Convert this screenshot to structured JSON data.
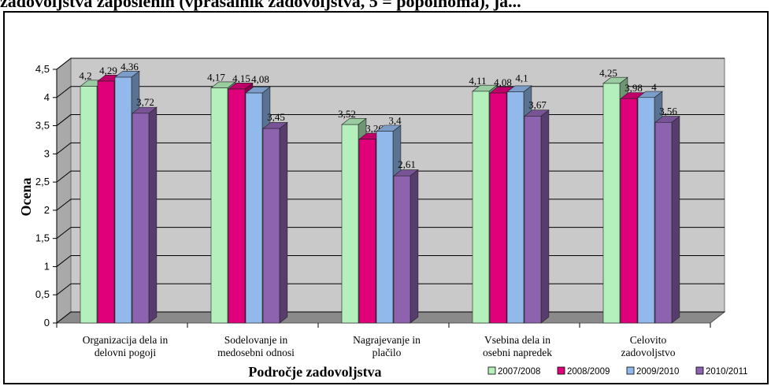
{
  "header": {
    "cut_text": "zadovoljstva zaposlenih (vprašalnik zadovoljstva, 5 = popolnoma), ja..."
  },
  "chart_data": {
    "type": "bar",
    "title": "",
    "xlabel": "Področje zadovoljstva",
    "ylabel": "Ocena",
    "ylim": [
      0,
      4.5
    ],
    "yticks": [
      "0",
      "0,5",
      "1",
      "1,5",
      "2",
      "2,5",
      "3",
      "3,5",
      "4",
      "4,5"
    ],
    "grid": true,
    "legend_position": "bottom-right",
    "categories": [
      [
        "Organizacija dela in",
        "delovni pogoji"
      ],
      [
        "Sodelovanje in",
        "medosebni odnosi"
      ],
      [
        "Nagrajevanje in",
        "plačilo"
      ],
      [
        "Vsebina dela in",
        "osebni napredek"
      ],
      [
        "Celovito",
        "zadovoljstvo"
      ]
    ],
    "series": [
      {
        "name": "2007/2008",
        "color": "#b4f0bc",
        "values": [
          4.2,
          4.17,
          3.52,
          4.11,
          4.25
        ],
        "labels": [
          "4,2",
          "4,17",
          "3,52",
          "4,11",
          "4,25"
        ]
      },
      {
        "name": "2008/2009",
        "color": "#e0007a",
        "values": [
          4.29,
          4.15,
          3.26,
          4.08,
          3.98
        ],
        "labels": [
          "4,29",
          "4,15",
          "3,26",
          "4,08",
          "3,98"
        ]
      },
      {
        "name": "2009/2010",
        "color": "#92b9ec",
        "values": [
          4.36,
          4.08,
          3.4,
          4.1,
          4.0
        ],
        "labels": [
          "4,36",
          "4,08",
          "3,4",
          "4,1",
          "4"
        ]
      },
      {
        "name": "2010/2011",
        "color": "#8d63b0",
        "values": [
          3.72,
          3.45,
          2.61,
          3.67,
          3.56
        ],
        "labels": [
          "3,72",
          "3,45",
          "2,61",
          "3,67",
          "3,56"
        ]
      }
    ]
  }
}
